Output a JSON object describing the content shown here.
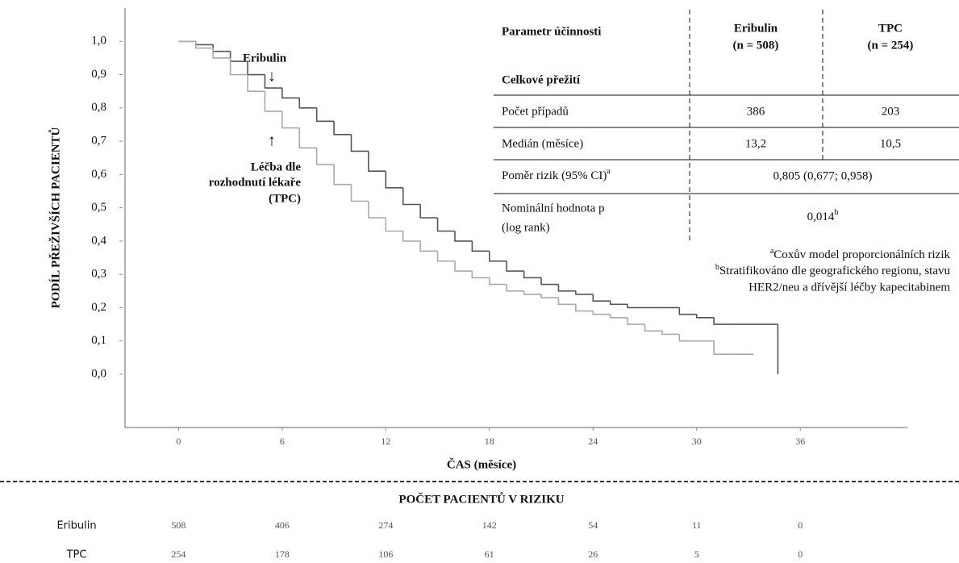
{
  "chart_data": {
    "type": "step",
    "y_label": "PODÍL PŘEŽIVŠÍCH PACIENTŮ",
    "x_label": "ČAS (měsíce)",
    "xlim": [
      -3.1,
      42.2
    ],
    "xticks": [
      0,
      6,
      12,
      18,
      24,
      30,
      36
    ],
    "ylim": [
      -0.16,
      1.1
    ],
    "yticks": [
      {
        "value": 0,
        "label": "0,0"
      },
      {
        "value": 0.1,
        "label": "0,1"
      },
      {
        "value": 0.2,
        "label": "0,2"
      },
      {
        "value": 0.3,
        "label": "0,3"
      },
      {
        "value": 0.4,
        "label": "0,4"
      },
      {
        "value": 0.5,
        "label": "0,5"
      },
      {
        "value": 0.6,
        "label": "0,6"
      },
      {
        "value": 0.7,
        "label": "0,7"
      },
      {
        "value": 0.8,
        "label": "0,8"
      },
      {
        "value": 0.9,
        "label": "0,9"
      },
      {
        "value": 1,
        "label": "1,0"
      }
    ],
    "annotations": {
      "eribulin": "Eribulin",
      "tpc": [
        "Léčba dle",
        "rozhodnutí lékaře",
        "(TPC)"
      ]
    },
    "series": [
      {
        "name": "Eribulin",
        "color": "#555555",
        "x": [
          0,
          1,
          2,
          3,
          4,
          5,
          6,
          7,
          8,
          9,
          10,
          11,
          12,
          13,
          14,
          15,
          16,
          17,
          18,
          19,
          20,
          21,
          22,
          23,
          24,
          25,
          26,
          27,
          28,
          29,
          30,
          31,
          32,
          33,
          34,
          34.7
        ],
        "values": [
          1.0,
          0.99,
          0.97,
          0.94,
          0.9,
          0.86,
          0.83,
          0.8,
          0.76,
          0.72,
          0.67,
          0.61,
          0.56,
          0.51,
          0.47,
          0.43,
          0.4,
          0.37,
          0.34,
          0.31,
          0.29,
          0.27,
          0.25,
          0.24,
          0.22,
          0.21,
          0.2,
          0.2,
          0.2,
          0.18,
          0.17,
          0.15,
          0.15,
          0.15,
          0.15,
          0.0
        ]
      },
      {
        "name": "TPC",
        "color": "#aaaaaa",
        "x": [
          0,
          1,
          2,
          3,
          4,
          5,
          6,
          7,
          8,
          9,
          10,
          11,
          12,
          13,
          14,
          15,
          16,
          17,
          18,
          19,
          20,
          21,
          22,
          23,
          24,
          25,
          26,
          27,
          28,
          29,
          30,
          31,
          32,
          33,
          33.3
        ],
        "values": [
          1.0,
          0.98,
          0.95,
          0.9,
          0.85,
          0.79,
          0.74,
          0.68,
          0.63,
          0.57,
          0.52,
          0.47,
          0.43,
          0.4,
          0.37,
          0.34,
          0.31,
          0.29,
          0.27,
          0.25,
          0.24,
          0.23,
          0.21,
          0.19,
          0.18,
          0.17,
          0.15,
          0.13,
          0.12,
          0.1,
          0.1,
          0.06,
          0.06,
          0.06,
          0.06
        ]
      }
    ]
  },
  "table": {
    "header": [
      "Parametr  účinnosti",
      [
        "Eribulin",
        "(n = 508)"
      ],
      [
        "TPC",
        "(n = 254)"
      ]
    ],
    "section": "Celkové přežití",
    "rows": [
      {
        "label": "Počet případů",
        "cells": [
          "386",
          "203"
        ]
      },
      {
        "label": "Medián (měsíce)",
        "cells": [
          "13,2",
          "10,5"
        ]
      },
      {
        "label": "Poměr rizik (95% CI)",
        "label_sup": "a",
        "merged": "0,805 (0,677; 0,958)"
      },
      {
        "label": [
          "Nominální hodnota p",
          "(log rank)"
        ],
        "merged": "0,014",
        "merged_sup": "b"
      }
    ],
    "footnotes": [
      {
        "mark": "a",
        "lines": [
          "Coxův model proporcionálních rizik"
        ]
      },
      {
        "mark": "b",
        "lines": [
          "Stratifikováno dle geografického regionu, stavu",
          "HER2/neu a dřívější léčby kapecitabinem"
        ]
      }
    ]
  },
  "risk_table": {
    "title": "POČET PACIENTŮ V RIZIKU",
    "rows": [
      {
        "name": "Eribulin",
        "values": [
          508,
          406,
          274,
          142,
          54,
          11,
          0
        ]
      },
      {
        "name": "TPC",
        "values": [
          254,
          178,
          106,
          61,
          26,
          5,
          0
        ]
      }
    ]
  }
}
